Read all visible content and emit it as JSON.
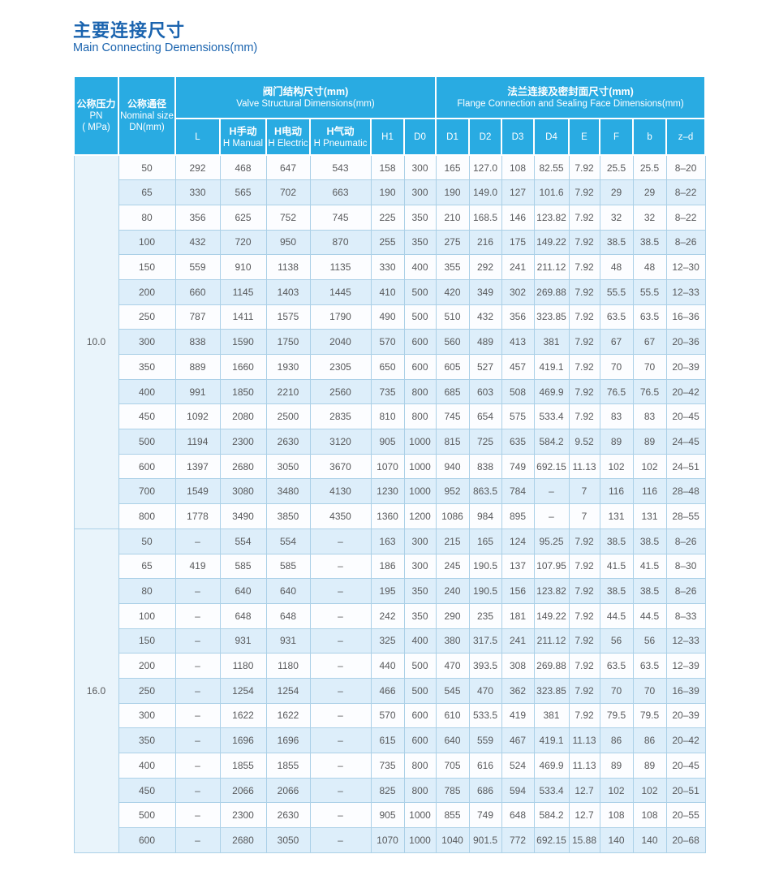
{
  "page": {
    "title": "主要连接尺寸",
    "subtitle": "Main Connecting Demensions(mm)"
  },
  "colors": {
    "header_bg": "#29abe2",
    "title_blue": "#1b64af",
    "row_stripe": "#ddeefa",
    "row_white": "#fcfdff",
    "pn_column_bg": "#e9f4fb",
    "grid_border": "#abd0e7",
    "body_text": "#58595b"
  },
  "table": {
    "col1_header": {
      "line1": "公称压力",
      "line2": "PN",
      "line3": "( MPa)"
    },
    "col2_header": {
      "line1": "公称通径",
      "line2": "Nominal size",
      "line3": "DN(mm)"
    },
    "group1": {
      "zh": "阀门结构尺寸(mm)",
      "en": "Valve Structural Dimensions(mm)"
    },
    "group2": {
      "zh": "法兰连接及密封面尺寸(mm)",
      "en": "Flange Connection and Sealing Face Dimensions(mm)"
    },
    "columns": [
      {
        "zh": "",
        "en": "L"
      },
      {
        "zh": "H手动",
        "en": "H Manual"
      },
      {
        "zh": "H电动",
        "en": "H Electric"
      },
      {
        "zh": "H气动",
        "en": "H Pneumatic"
      },
      {
        "zh": "",
        "en": "H1"
      },
      {
        "zh": "",
        "en": "D0"
      },
      {
        "zh": "",
        "en": "D1"
      },
      {
        "zh": "",
        "en": "D2"
      },
      {
        "zh": "",
        "en": "D3"
      },
      {
        "zh": "",
        "en": "D4"
      },
      {
        "zh": "",
        "en": "E"
      },
      {
        "zh": "",
        "en": "F"
      },
      {
        "zh": "",
        "en": "b"
      },
      {
        "zh": "",
        "en": "z–d"
      }
    ],
    "sections": [
      {
        "pn": "10.0",
        "rows": [
          [
            "50",
            "292",
            "468",
            "647",
            "543",
            "158",
            "300",
            "165",
            "127.0",
            "108",
            "82.55",
            "7.92",
            "25.5",
            "25.5",
            "8–20"
          ],
          [
            "65",
            "330",
            "565",
            "702",
            "663",
            "190",
            "300",
            "190",
            "149.0",
            "127",
            "101.6",
            "7.92",
            "29",
            "29",
            "8–22"
          ],
          [
            "80",
            "356",
            "625",
            "752",
            "745",
            "225",
            "350",
            "210",
            "168.5",
            "146",
            "123.82",
            "7.92",
            "32",
            "32",
            "8–22"
          ],
          [
            "100",
            "432",
            "720",
            "950",
            "870",
            "255",
            "350",
            "275",
            "216",
            "175",
            "149.22",
            "7.92",
            "38.5",
            "38.5",
            "8–26"
          ],
          [
            "150",
            "559",
            "910",
            "1138",
            "1135",
            "330",
            "400",
            "355",
            "292",
            "241",
            "211.12",
            "7.92",
            "48",
            "48",
            "12–30"
          ],
          [
            "200",
            "660",
            "1145",
            "1403",
            "1445",
            "410",
            "500",
            "420",
            "349",
            "302",
            "269.88",
            "7.92",
            "55.5",
            "55.5",
            "12–33"
          ],
          [
            "250",
            "787",
            "1411",
            "1575",
            "1790",
            "490",
            "500",
            "510",
            "432",
            "356",
            "323.85",
            "7.92",
            "63.5",
            "63.5",
            "16–36"
          ],
          [
            "300",
            "838",
            "1590",
            "1750",
            "2040",
            "570",
            "600",
            "560",
            "489",
            "413",
            "381",
            "7.92",
            "67",
            "67",
            "20–36"
          ],
          [
            "350",
            "889",
            "1660",
            "1930",
            "2305",
            "650",
            "600",
            "605",
            "527",
            "457",
            "419.1",
            "7.92",
            "70",
            "70",
            "20–39"
          ],
          [
            "400",
            "991",
            "1850",
            "2210",
            "2560",
            "735",
            "800",
            "685",
            "603",
            "508",
            "469.9",
            "7.92",
            "76.5",
            "76.5",
            "20–42"
          ],
          [
            "450",
            "1092",
            "2080",
            "2500",
            "2835",
            "810",
            "800",
            "745",
            "654",
            "575",
            "533.4",
            "7.92",
            "83",
            "83",
            "20–45"
          ],
          [
            "500",
            "1194",
            "2300",
            "2630",
            "3120",
            "905",
            "1000",
            "815",
            "725",
            "635",
            "584.2",
            "9.52",
            "89",
            "89",
            "24–45"
          ],
          [
            "600",
            "1397",
            "2680",
            "3050",
            "3670",
            "1070",
            "1000",
            "940",
            "838",
            "749",
            "692.15",
            "11.13",
            "102",
            "102",
            "24–51"
          ],
          [
            "700",
            "1549",
            "3080",
            "3480",
            "4130",
            "1230",
            "1000",
            "952",
            "863.5",
            "784",
            "–",
            "7",
            "116",
            "116",
            "28–48"
          ],
          [
            "800",
            "1778",
            "3490",
            "3850",
            "4350",
            "1360",
            "1200",
            "1086",
            "984",
            "895",
            "–",
            "7",
            "131",
            "131",
            "28–55"
          ]
        ]
      },
      {
        "pn": "16.0",
        "rows": [
          [
            "50",
            "–",
            "554",
            "554",
            "–",
            "163",
            "300",
            "215",
            "165",
            "124",
            "95.25",
            "7.92",
            "38.5",
            "38.5",
            "8–26"
          ],
          [
            "65",
            "419",
            "585",
            "585",
            "–",
            "186",
            "300",
            "245",
            "190.5",
            "137",
            "107.95",
            "7.92",
            "41.5",
            "41.5",
            "8–30"
          ],
          [
            "80",
            "–",
            "640",
            "640",
            "–",
            "195",
            "350",
            "240",
            "190.5",
            "156",
            "123.82",
            "7.92",
            "38.5",
            "38.5",
            "8–26"
          ],
          [
            "100",
            "–",
            "648",
            "648",
            "–",
            "242",
            "350",
            "290",
            "235",
            "181",
            "149.22",
            "7.92",
            "44.5",
            "44.5",
            "8–33"
          ],
          [
            "150",
            "–",
            "931",
            "931",
            "–",
            "325",
            "400",
            "380",
            "317.5",
            "241",
            "211.12",
            "7.92",
            "56",
            "56",
            "12–33"
          ],
          [
            "200",
            "–",
            "1180",
            "1180",
            "–",
            "440",
            "500",
            "470",
            "393.5",
            "308",
            "269.88",
            "7.92",
            "63.5",
            "63.5",
            "12–39"
          ],
          [
            "250",
            "–",
            "1254",
            "1254",
            "–",
            "466",
            "500",
            "545",
            "470",
            "362",
            "323.85",
            "7.92",
            "70",
            "70",
            "16–39"
          ],
          [
            "300",
            "–",
            "1622",
            "1622",
            "–",
            "570",
            "600",
            "610",
            "533.5",
            "419",
            "381",
            "7.92",
            "79.5",
            "79.5",
            "20–39"
          ],
          [
            "350",
            "–",
            "1696",
            "1696",
            "–",
            "615",
            "600",
            "640",
            "559",
            "467",
            "419.1",
            "11.13",
            "86",
            "86",
            "20–42"
          ],
          [
            "400",
            "–",
            "1855",
            "1855",
            "–",
            "735",
            "800",
            "705",
            "616",
            "524",
            "469.9",
            "11.13",
            "89",
            "89",
            "20–45"
          ],
          [
            "450",
            "–",
            "2066",
            "2066",
            "–",
            "825",
            "800",
            "785",
            "686",
            "594",
            "533.4",
            "12.7",
            "102",
            "102",
            "20–51"
          ],
          [
            "500",
            "–",
            "2300",
            "2630",
            "–",
            "905",
            "1000",
            "855",
            "749",
            "648",
            "584.2",
            "12.7",
            "108",
            "108",
            "20–55"
          ],
          [
            "600",
            "–",
            "2680",
            "3050",
            "–",
            "1070",
            "1000",
            "1040",
            "901.5",
            "772",
            "692.15",
            "15.88",
            "140",
            "140",
            "20–68"
          ]
        ]
      }
    ]
  }
}
